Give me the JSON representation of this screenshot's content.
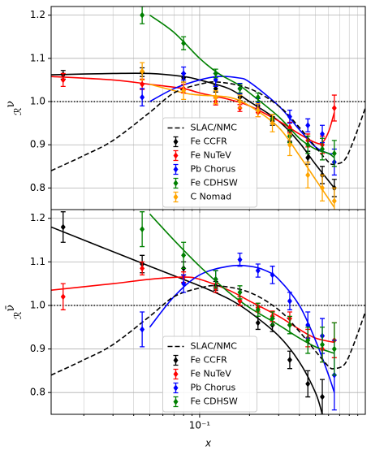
{
  "chart_data": [
    {
      "type": "errorbar",
      "ylabel": "ℛ",
      "ylabel_sup": "ν",
      "xlog": true,
      "xlim": [
        0.0127,
        1.0
      ],
      "xticks": [
        0.1
      ],
      "xticklabels": false,
      "xminorticks": [
        0.02,
        0.03,
        0.04,
        0.05,
        0.06,
        0.07,
        0.08,
        0.09,
        0.2,
        0.3,
        0.4,
        0.5,
        0.6,
        0.7,
        0.8,
        0.9
      ],
      "ylim": [
        0.75,
        1.22
      ],
      "yticks": [
        0.8,
        0.9,
        {
          "value": 1.0,
          "label": "1.0"
        },
        1.1,
        1.2
      ],
      "grid": true,
      "hline": 1.0,
      "legend_loc": "lower center",
      "curves": [
        {
          "name": "SLAC/NMC",
          "color": "#000000",
          "dashed": true,
          "x": [
            0.0127,
            0.02,
            0.03,
            0.05,
            0.07,
            0.1,
            0.13,
            0.2,
            0.3,
            0.4,
            0.5,
            0.6,
            0.65,
            0.75,
            0.85,
            1.0
          ],
          "values": [
            0.84,
            0.875,
            0.91,
            0.975,
            1.02,
            1.04,
            1.045,
            1.03,
            0.99,
            0.94,
            0.895,
            0.86,
            0.855,
            0.865,
            0.91,
            0.985
          ]
        },
        {
          "color": "#000000",
          "x": [
            0.0127,
            0.03,
            0.05,
            0.08,
            0.1,
            0.15,
            0.2,
            0.3,
            0.4,
            0.5,
            0.65
          ],
          "values": [
            1.062,
            1.065,
            1.065,
            1.058,
            1.05,
            1.03,
            1.0,
            0.955,
            0.905,
            0.855,
            0.8
          ]
        },
        {
          "color": "#ff0000",
          "x": [
            0.0127,
            0.03,
            0.05,
            0.08,
            0.1,
            0.15,
            0.2,
            0.3,
            0.4,
            0.5,
            0.55,
            0.6,
            0.65
          ],
          "values": [
            1.058,
            1.05,
            1.04,
            1.03,
            1.02,
            1.005,
            0.99,
            0.955,
            0.925,
            0.905,
            0.905,
            0.93,
            0.975
          ]
        },
        {
          "color": "#0000ff",
          "x": [
            0.05,
            0.07,
            0.1,
            0.13,
            0.17,
            0.2,
            0.3,
            0.4,
            0.5,
            0.6,
            0.65
          ],
          "values": [
            1.0,
            1.03,
            1.05,
            1.058,
            1.055,
            1.045,
            0.99,
            0.935,
            0.895,
            0.88,
            0.88
          ]
        },
        {
          "color": "#008000",
          "x": [
            0.05,
            0.07,
            0.1,
            0.13,
            0.17,
            0.2,
            0.3,
            0.4,
            0.5,
            0.6,
            0.65
          ],
          "values": [
            1.2,
            1.16,
            1.1,
            1.065,
            1.04,
            1.02,
            0.965,
            0.915,
            0.89,
            0.88,
            0.87
          ]
        },
        {
          "color": "#ffa500",
          "x": [
            0.05,
            0.08,
            0.1,
            0.15,
            0.2,
            0.3,
            0.4,
            0.5,
            0.6,
            0.65
          ],
          "values": [
            1.04,
            1.02,
            1.015,
            1.01,
            0.99,
            0.94,
            0.875,
            0.82,
            0.775,
            0.755
          ]
        }
      ],
      "series": [
        {
          "name": "Fe CCFR",
          "color": "#000000",
          "x": [
            0.015,
            0.045,
            0.08,
            0.125,
            0.175,
            0.225,
            0.275,
            0.35,
            0.45,
            0.55,
            0.65
          ],
          "values": [
            1.062,
            1.068,
            1.055,
            1.03,
            1.01,
            0.99,
            0.955,
            0.92,
            0.87,
            0.83,
            0.8
          ],
          "errors": [
            0.01,
            0.01,
            0.01,
            0.008,
            0.008,
            0.01,
            0.01,
            0.012,
            0.015,
            0.02,
            0.02
          ]
        },
        {
          "name": "Fe NuTeV",
          "color": "#ff0000",
          "x": [
            0.015,
            0.045,
            0.08,
            0.125,
            0.175,
            0.225,
            0.275,
            0.35,
            0.45,
            0.55,
            0.65
          ],
          "values": [
            1.05,
            1.04,
            1.03,
            1.0,
            0.985,
            0.975,
            0.96,
            0.94,
            0.91,
            0.9,
            0.985
          ],
          "errors": [
            0.015,
            0.012,
            0.01,
            0.008,
            0.008,
            0.01,
            0.01,
            0.012,
            0.015,
            0.02,
            0.03
          ]
        },
        {
          "name": "Pb Chorus",
          "color": "#0000ff",
          "x": [
            0.045,
            0.08,
            0.125,
            0.175,
            0.225,
            0.35,
            0.45,
            0.55,
            0.65
          ],
          "values": [
            1.01,
            1.065,
            1.05,
            1.03,
            0.995,
            0.965,
            0.945,
            0.925,
            0.86
          ],
          "errors": [
            0.02,
            0.015,
            0.015,
            0.012,
            0.012,
            0.015,
            0.015,
            0.02,
            0.03
          ]
        },
        {
          "name": "Fe CDHSW",
          "color": "#008000",
          "x": [
            0.045,
            0.08,
            0.125,
            0.175,
            0.225,
            0.275,
            0.35,
            0.45,
            0.55,
            0.65
          ],
          "values": [
            1.2,
            1.135,
            1.065,
            1.03,
            1.01,
            0.96,
            0.92,
            0.9,
            0.89,
            0.88
          ],
          "errors": [
            0.02,
            0.015,
            0.01,
            0.01,
            0.01,
            0.01,
            0.015,
            0.02,
            0.025,
            0.03
          ]
        },
        {
          "name": "C Nomad",
          "color": "#ffa500",
          "x": [
            0.045,
            0.08,
            0.125,
            0.175,
            0.225,
            0.275,
            0.35,
            0.45,
            0.55,
            0.65
          ],
          "values": [
            1.07,
            1.025,
            1.01,
            1.0,
            0.98,
            0.95,
            0.9,
            0.83,
            0.8,
            0.77
          ],
          "errors": [
            0.02,
            0.02,
            0.015,
            0.015,
            0.015,
            0.02,
            0.025,
            0.03,
            0.03,
            0.03
          ]
        }
      ]
    },
    {
      "type": "errorbar",
      "ylabel": "ℛ",
      "ylabel_sup": "ν̄",
      "xlabel": "x",
      "xlog": true,
      "xlim": [
        0.0127,
        1.0
      ],
      "xticks": [
        {
          "value": 0.1,
          "label": "10⁻¹"
        }
      ],
      "xticklabels": true,
      "xminorticks": [
        0.02,
        0.03,
        0.04,
        0.05,
        0.06,
        0.07,
        0.08,
        0.09,
        0.2,
        0.3,
        0.4,
        0.5,
        0.6,
        0.7,
        0.8,
        0.9
      ],
      "ylim": [
        0.75,
        1.22
      ],
      "yticks": [
        0.8,
        0.9,
        {
          "value": 1.0,
          "label": "1.0"
        },
        1.1,
        1.2
      ],
      "grid": true,
      "hline": 1.0,
      "legend_loc": "lower center",
      "curves": [
        {
          "name": "SLAC/NMC",
          "color": "#000000",
          "dashed": true,
          "x": [
            0.0127,
            0.02,
            0.03,
            0.05,
            0.07,
            0.1,
            0.13,
            0.2,
            0.3,
            0.4,
            0.5,
            0.6,
            0.65,
            0.75,
            0.85,
            1.0
          ],
          "values": [
            0.84,
            0.875,
            0.91,
            0.975,
            1.02,
            1.04,
            1.045,
            1.03,
            0.99,
            0.94,
            0.895,
            0.86,
            0.855,
            0.865,
            0.91,
            0.985
          ]
        },
        {
          "color": "#000000",
          "x": [
            0.0127,
            0.02,
            0.05,
            0.1,
            0.15,
            0.2,
            0.3,
            0.4,
            0.5,
            0.55
          ],
          "values": [
            1.18,
            1.15,
            1.09,
            1.045,
            1.015,
            0.985,
            0.93,
            0.87,
            0.8,
            0.75
          ]
        },
        {
          "color": "#ff0000",
          "x": [
            0.0127,
            0.03,
            0.05,
            0.08,
            0.1,
            0.15,
            0.2,
            0.3,
            0.4,
            0.5,
            0.65
          ],
          "values": [
            1.035,
            1.05,
            1.06,
            1.065,
            1.06,
            1.035,
            1.01,
            0.975,
            0.945,
            0.925,
            0.915
          ]
        },
        {
          "color": "#0000ff",
          "x": [
            0.05,
            0.07,
            0.1,
            0.15,
            0.2,
            0.25,
            0.3,
            0.4,
            0.5,
            0.6,
            0.65
          ],
          "values": [
            0.95,
            1.02,
            1.07,
            1.09,
            1.09,
            1.08,
            1.06,
            1.0,
            0.92,
            0.84,
            0.8
          ]
        },
        {
          "color": "#008000",
          "x": [
            0.05,
            0.07,
            0.1,
            0.15,
            0.2,
            0.3,
            0.4,
            0.5,
            0.65
          ],
          "values": [
            1.21,
            1.15,
            1.09,
            1.03,
            0.995,
            0.955,
            0.925,
            0.905,
            0.89
          ]
        }
      ],
      "series": [
        {
          "name": "Fe CCFR",
          "color": "#000000",
          "x": [
            0.015,
            0.045,
            0.08,
            0.125,
            0.175,
            0.225,
            0.275,
            0.35,
            0.45,
            0.55
          ],
          "values": [
            1.18,
            1.095,
            1.085,
            1.045,
            1.01,
            0.96,
            0.955,
            0.875,
            0.82,
            0.79
          ],
          "errors": [
            0.035,
            0.02,
            0.015,
            0.01,
            0.01,
            0.015,
            0.015,
            0.02,
            0.03,
            0.04
          ]
        },
        {
          "name": "Fe NuTeV",
          "color": "#ff0000",
          "x": [
            0.015,
            0.045,
            0.08,
            0.125,
            0.175,
            0.225,
            0.275,
            0.35,
            0.45,
            0.55,
            0.65
          ],
          "values": [
            1.02,
            1.085,
            1.065,
            1.04,
            1.01,
            0.995,
            0.975,
            0.97,
            0.925,
            0.9,
            0.92
          ],
          "errors": [
            0.03,
            0.015,
            0.012,
            0.01,
            0.01,
            0.01,
            0.012,
            0.015,
            0.02,
            0.03,
            0.04
          ]
        },
        {
          "name": "Pb Chorus",
          "color": "#0000ff",
          "x": [
            0.045,
            0.08,
            0.125,
            0.175,
            0.225,
            0.275,
            0.35,
            0.45,
            0.55,
            0.65
          ],
          "values": [
            0.945,
            1.05,
            1.06,
            1.105,
            1.08,
            1.07,
            1.01,
            0.955,
            0.93,
            0.84
          ],
          "errors": [
            0.04,
            0.02,
            0.02,
            0.015,
            0.015,
            0.02,
            0.02,
            0.03,
            0.04,
            0.08
          ]
        },
        {
          "name": "Fe CDHSW",
          "color": "#008000",
          "x": [
            0.045,
            0.08,
            0.125,
            0.175,
            0.225,
            0.275,
            0.35,
            0.45,
            0.55,
            0.65
          ],
          "values": [
            1.175,
            1.115,
            1.06,
            1.03,
            0.99,
            0.97,
            0.955,
            0.92,
            0.91,
            0.9
          ],
          "errors": [
            0.04,
            0.03,
            0.02,
            0.015,
            0.015,
            0.015,
            0.02,
            0.03,
            0.04,
            0.06
          ]
        }
      ]
    }
  ]
}
